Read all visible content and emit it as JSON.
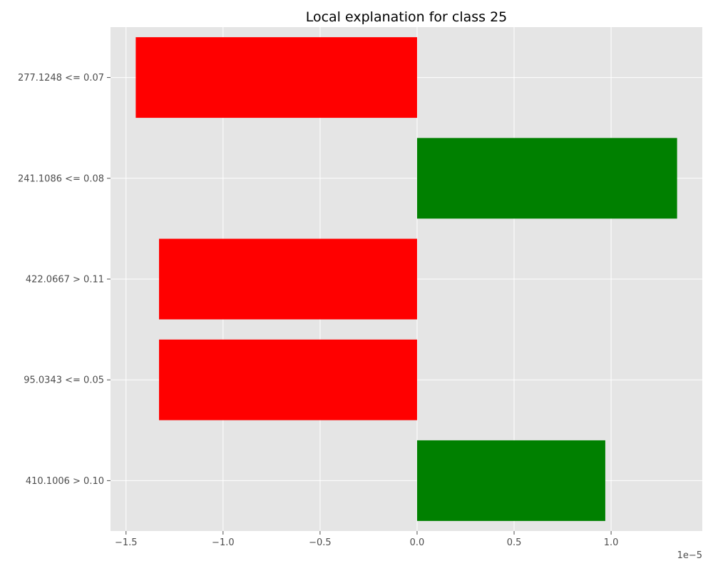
{
  "chart_data": {
    "type": "bar",
    "orientation": "horizontal",
    "title": "Local explanation for class 25",
    "xlabel": "",
    "ylabel": "",
    "x_multiplier_label": "1e−5",
    "x_multiplier": 1e-05,
    "xlim": [
      -1.58,
      1.47
    ],
    "grid": true,
    "background": "#e5e5e5",
    "grid_color": "#ffffff",
    "positive_color": "#008000",
    "negative_color": "#ff0000",
    "x_ticks": [
      {
        "value": -1.5,
        "label": "−1.5"
      },
      {
        "value": -1.0,
        "label": "−1.0"
      },
      {
        "value": -0.5,
        "label": "−0.5"
      },
      {
        "value": 0.0,
        "label": "0.0"
      },
      {
        "value": 0.5,
        "label": "0.5"
      },
      {
        "value": 1.0,
        "label": "1.0"
      }
    ],
    "categories": [
      "277.1248 <= 0.07",
      "241.1086 <= 0.08",
      "422.0667 > 0.11",
      "95.0343 <= 0.05",
      "410.1006 > 0.10"
    ],
    "values": [
      -1.45,
      1.34,
      -1.33,
      -1.33,
      0.97
    ]
  }
}
